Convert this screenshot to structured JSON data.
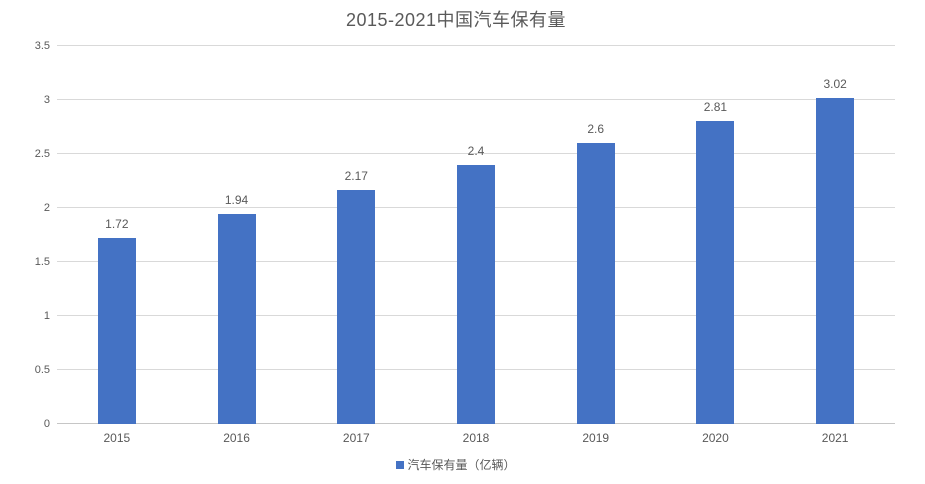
{
  "chart_data": {
    "type": "bar",
    "title": "2015-2021中国汽车保有量",
    "categories": [
      "2015",
      "2016",
      "2017",
      "2018",
      "2019",
      "2020",
      "2021"
    ],
    "values": [
      1.72,
      1.94,
      2.17,
      2.4,
      2.6,
      2.81,
      3.02
    ],
    "data_labels": [
      "1.72",
      "1.94",
      "2.17",
      "2.4",
      "2.6",
      "2.81",
      "3.02"
    ],
    "series_name": "汽车保有量（亿辆）",
    "xlabel": "",
    "ylabel": "",
    "ylim": [
      0,
      3.5
    ],
    "ytick_interval": 0.5,
    "yticks": [
      "0",
      "0.5",
      "1",
      "1.5",
      "2",
      "2.5",
      "3",
      "3.5"
    ],
    "grid": true,
    "legend": {
      "position": "bottom",
      "label": "汽车保有量（亿辆）"
    },
    "colors": {
      "bar": "#4472c4",
      "text": "#595959",
      "gridline": "#d9d9d9",
      "axis_line": "#c6c6c6",
      "background": "#ffffff"
    }
  }
}
